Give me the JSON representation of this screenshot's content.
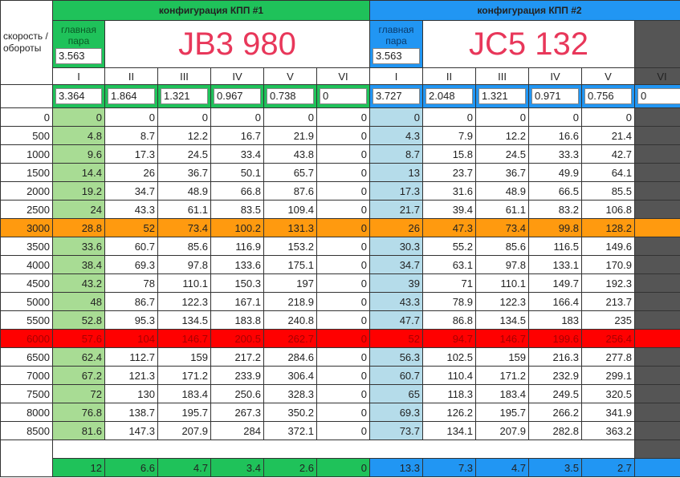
{
  "corner_label": "скорость / обороты",
  "config1": {
    "header": "конфигурация КПП #1",
    "main_pair_label": "главная пара",
    "main_pair": "3.563",
    "model": "JB3 980",
    "gears": [
      "I",
      "II",
      "III",
      "IV",
      "V",
      "VI"
    ],
    "ratios": [
      "3.364",
      "1.864",
      "1.321",
      "0.967",
      "0.738",
      "0"
    ]
  },
  "config2": {
    "header": "конфигурация КПП #2",
    "main_pair_label": "главная пара",
    "main_pair": "3.563",
    "model": "JC5 132",
    "gears": [
      "I",
      "II",
      "III",
      "IV",
      "V",
      "VI"
    ],
    "ratios": [
      "3.727",
      "2.048",
      "1.321",
      "0.971",
      "0.756",
      "0"
    ]
  },
  "colors": {
    "green": "#1fc25a",
    "blue": "#2196f3",
    "orange": "#ff9a0f",
    "red": "#ff0000",
    "title": "#e8375a"
  },
  "rows": [
    {
      "rpm": "0",
      "g1": [
        "0",
        "0",
        "0",
        "0",
        "0",
        "0"
      ],
      "g2": [
        "0",
        "0",
        "0",
        "0",
        "0"
      ]
    },
    {
      "rpm": "500",
      "g1": [
        "4.8",
        "8.7",
        "12.2",
        "16.7",
        "21.9",
        "0"
      ],
      "g2": [
        "4.3",
        "7.9",
        "12.2",
        "16.6",
        "21.4"
      ]
    },
    {
      "rpm": "1000",
      "g1": [
        "9.6",
        "17.3",
        "24.5",
        "33.4",
        "43.8",
        "0"
      ],
      "g2": [
        "8.7",
        "15.8",
        "24.5",
        "33.3",
        "42.7"
      ]
    },
    {
      "rpm": "1500",
      "g1": [
        "14.4",
        "26",
        "36.7",
        "50.1",
        "65.7",
        "0"
      ],
      "g2": [
        "13",
        "23.7",
        "36.7",
        "49.9",
        "64.1"
      ]
    },
    {
      "rpm": "2000",
      "g1": [
        "19.2",
        "34.7",
        "48.9",
        "66.8",
        "87.6",
        "0"
      ],
      "g2": [
        "17.3",
        "31.6",
        "48.9",
        "66.5",
        "85.5"
      ]
    },
    {
      "rpm": "2500",
      "g1": [
        "24",
        "43.3",
        "61.1",
        "83.5",
        "109.4",
        "0"
      ],
      "g2": [
        "21.7",
        "39.4",
        "61.1",
        "83.2",
        "106.8"
      ]
    },
    {
      "rpm": "3000",
      "g1": [
        "28.8",
        "52",
        "73.4",
        "100.2",
        "131.3",
        "0"
      ],
      "g2": [
        "26",
        "47.3",
        "73.4",
        "99.8",
        "128.2"
      ],
      "highlight": "orange"
    },
    {
      "rpm": "3500",
      "g1": [
        "33.6",
        "60.7",
        "85.6",
        "116.9",
        "153.2",
        "0"
      ],
      "g2": [
        "30.3",
        "55.2",
        "85.6",
        "116.5",
        "149.6"
      ]
    },
    {
      "rpm": "4000",
      "g1": [
        "38.4",
        "69.3",
        "97.8",
        "133.6",
        "175.1",
        "0"
      ],
      "g2": [
        "34.7",
        "63.1",
        "97.8",
        "133.1",
        "170.9"
      ]
    },
    {
      "rpm": "4500",
      "g1": [
        "43.2",
        "78",
        "110.1",
        "150.3",
        "197",
        "0"
      ],
      "g2": [
        "39",
        "71",
        "110.1",
        "149.7",
        "192.3"
      ]
    },
    {
      "rpm": "5000",
      "g1": [
        "48",
        "86.7",
        "122.3",
        "167.1",
        "218.9",
        "0"
      ],
      "g2": [
        "43.3",
        "78.9",
        "122.3",
        "166.4",
        "213.7"
      ]
    },
    {
      "rpm": "5500",
      "g1": [
        "52.8",
        "95.3",
        "134.5",
        "183.8",
        "240.8",
        "0"
      ],
      "g2": [
        "47.7",
        "86.8",
        "134.5",
        "183",
        "235"
      ]
    },
    {
      "rpm": "6000",
      "g1": [
        "57.6",
        "104",
        "146.7",
        "200.5",
        "262.7",
        "0"
      ],
      "g2": [
        "52",
        "94.7",
        "146.7",
        "199.6",
        "256.4"
      ],
      "highlight": "red"
    },
    {
      "rpm": "6500",
      "g1": [
        "62.4",
        "112.7",
        "159",
        "217.2",
        "284.6",
        "0"
      ],
      "g2": [
        "56.3",
        "102.5",
        "159",
        "216.3",
        "277.8"
      ]
    },
    {
      "rpm": "7000",
      "g1": [
        "67.2",
        "121.3",
        "171.2",
        "233.9",
        "306.4",
        "0"
      ],
      "g2": [
        "60.7",
        "110.4",
        "171.2",
        "232.9",
        "299.1"
      ]
    },
    {
      "rpm": "7500",
      "g1": [
        "72",
        "130",
        "183.4",
        "250.6",
        "328.3",
        "0"
      ],
      "g2": [
        "65",
        "118.3",
        "183.4",
        "249.5",
        "320.5"
      ]
    },
    {
      "rpm": "8000",
      "g1": [
        "76.8",
        "138.7",
        "195.7",
        "267.3",
        "350.2",
        "0"
      ],
      "g2": [
        "69.3",
        "126.2",
        "195.7",
        "266.2",
        "341.9"
      ]
    },
    {
      "rpm": "8500",
      "g1": [
        "81.6",
        "147.3",
        "207.9",
        "284",
        "372.1",
        "0"
      ],
      "g2": [
        "73.7",
        "134.1",
        "207.9",
        "282.8",
        "363.2"
      ]
    }
  ],
  "bottom": {
    "g1": [
      "12",
      "6.6",
      "4.7",
      "3.4",
      "2.6",
      "0"
    ],
    "g2": [
      "13.3",
      "7.3",
      "4.7",
      "3.5",
      "2.7"
    ]
  }
}
